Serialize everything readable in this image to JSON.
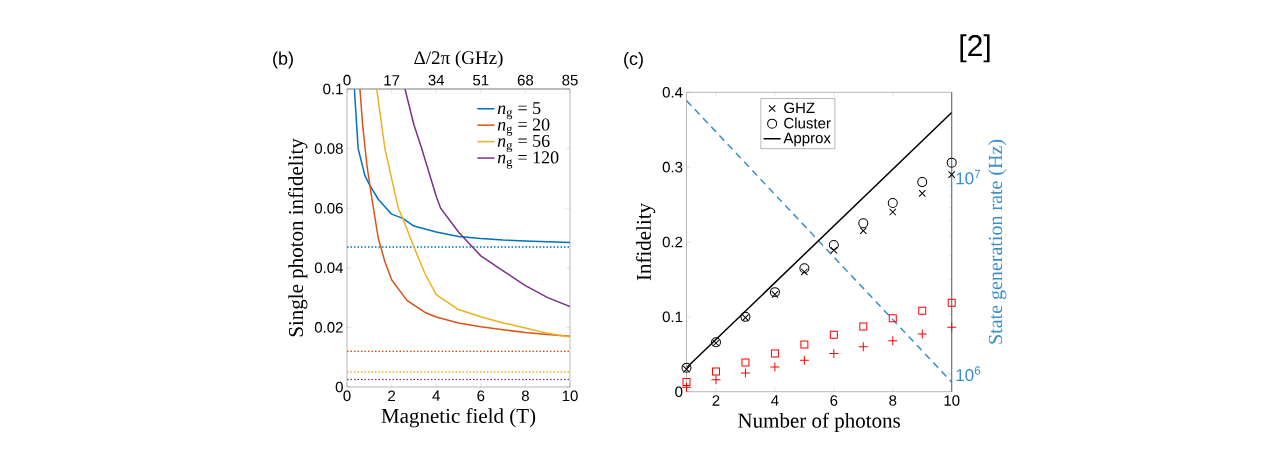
{
  "chart_data": [
    {
      "type": "line",
      "annotations": [
        "(b)"
      ],
      "xlabel": "Magnetic field (T)",
      "ylabel": "Single photon infidelity",
      "x2label": "Δ/2π (GHz)",
      "xlim": [
        0,
        10
      ],
      "xticks": [
        0,
        2,
        4,
        6,
        8,
        10
      ],
      "x2lim": [
        0,
        85
      ],
      "x2ticks": [
        0,
        17,
        34,
        51,
        68,
        85
      ],
      "ylim": [
        0,
        0.1
      ],
      "yticks": [
        0,
        0.02,
        0.04,
        0.06,
        0.08,
        0.1
      ],
      "legend": "top right",
      "series": [
        {
          "name": "*n*$_{g}$ = 5",
          "color": "#0072bd",
          "x": [
            0.33,
            0.5,
            0.8,
            1,
            1.4,
            2,
            2.5,
            3,
            4,
            5,
            6,
            7,
            8,
            9,
            10
          ],
          "values": [
            0.1,
            0.08,
            0.071,
            0.068,
            0.063,
            0.058,
            0.0566,
            0.054,
            0.052,
            0.0505,
            0.0498,
            0.0493,
            0.049,
            0.0487,
            0.0485
          ]
        },
        {
          "name": "*n*$_{g}$ = 20",
          "color": "#d95319",
          "x": [
            0.58,
            0.7,
            0.9,
            1.1,
            1.4,
            1.7,
            2,
            2.7,
            3.5,
            4,
            5,
            6,
            7,
            8,
            9,
            10
          ],
          "values": [
            0.1,
            0.088,
            0.074,
            0.064,
            0.05,
            0.042,
            0.036,
            0.029,
            0.025,
            0.0235,
            0.0215,
            0.0202,
            0.0192,
            0.0183,
            0.0176,
            0.017
          ]
        },
        {
          "name": "*n*$_{g}$ = 56",
          "color": "#edb120",
          "x": [
            1.33,
            1.7,
            2.3,
            2.5,
            3,
            3.5,
            4,
            5,
            6,
            7,
            8,
            9,
            10
          ],
          "values": [
            0.1,
            0.08,
            0.06,
            0.0566,
            0.047,
            0.038,
            0.031,
            0.026,
            0.0236,
            0.0215,
            0.0198,
            0.018,
            0.0168
          ]
        },
        {
          "name": "*n*$_{g}$ = 120",
          "color": "#7e2f8e",
          "x": [
            2.6,
            3,
            3.35,
            4,
            4.2,
            5,
            5.5,
            6,
            7,
            8,
            9,
            10
          ],
          "values": [
            0.1,
            0.088,
            0.08,
            0.064,
            0.06,
            0.052,
            0.048,
            0.044,
            0.039,
            0.034,
            0.03,
            0.027
          ]
        }
      ],
      "ref_lines": [
        {
          "axis": "y",
          "value": 0.047,
          "color": "#0072bd",
          "line_style": "dotted"
        },
        {
          "axis": "y",
          "value": 0.012,
          "color": "#d95319",
          "line_style": "dotted"
        },
        {
          "axis": "y",
          "value": 0.005,
          "color": "#edb120",
          "line_style": "dotted"
        },
        {
          "axis": "y",
          "value": 0.0025,
          "color": "#7e2f8e",
          "line_style": "dotted"
        }
      ]
    },
    {
      "type": "scatter",
      "annotations": [
        "(c)",
        "[2]"
      ],
      "xlabel": "Number of photons",
      "ylabel": "Infidelity",
      "y2label": "State generation rate (Hz)",
      "x": [
        1,
        2,
        3,
        4,
        5,
        6,
        7,
        8,
        9,
        10
      ],
      "xlim": [
        1,
        10
      ],
      "xticks": [
        2,
        4,
        6,
        8,
        10
      ],
      "ylim": [
        0,
        0.4
      ],
      "yticks": [
        0,
        0.1,
        0.2,
        0.3,
        0.4
      ],
      "y2lim": [
        810000,
        27000000
      ],
      "y2ticks": [
        {
          "value": 1000000,
          "label": "10$^{6}$"
        },
        {
          "value": 10000000,
          "label": "10$^{7}$"
        }
      ],
      "log": "y2",
      "legend": "top",
      "series": [
        {
          "name": "GHZ",
          "type": "scatter",
          "marker": "cross",
          "color": "#000000",
          "values": [
            0.03,
            0.065,
            0.099,
            0.13,
            0.16,
            0.189,
            0.215,
            0.24,
            0.265,
            0.29
          ]
        },
        {
          "name": "Cluster",
          "type": "scatter",
          "marker": "circle",
          "color": "#000000",
          "values": [
            0.032,
            0.066,
            0.1,
            0.133,
            0.165,
            0.196,
            0.225,
            0.252,
            0.28,
            0.306
          ]
        },
        {
          "name": "Approx",
          "type": "line",
          "color": "#000000",
          "x": [
            1,
            10
          ],
          "values": [
            0.032,
            0.373
          ]
        },
        {
          "type": "scatter",
          "marker": "square",
          "color": "#ff0000",
          "values": [
            0.013,
            0.027,
            0.039,
            0.051,
            0.063,
            0.076,
            0.087,
            0.098,
            0.108,
            0.119
          ]
        },
        {
          "type": "scatter",
          "marker": "plus",
          "color": "#ff0000",
          "values": [
            0.006,
            0.016,
            0.025,
            0.033,
            0.042,
            0.051,
            0.06,
            0.068,
            0.077,
            0.086
          ]
        },
        {
          "type": "line",
          "axis": "y2",
          "line_style": "dashed",
          "color": "#3a8fc8",
          "x": [
            1,
            10
          ],
          "values": [
            24500000,
            906000
          ]
        }
      ]
    }
  ]
}
